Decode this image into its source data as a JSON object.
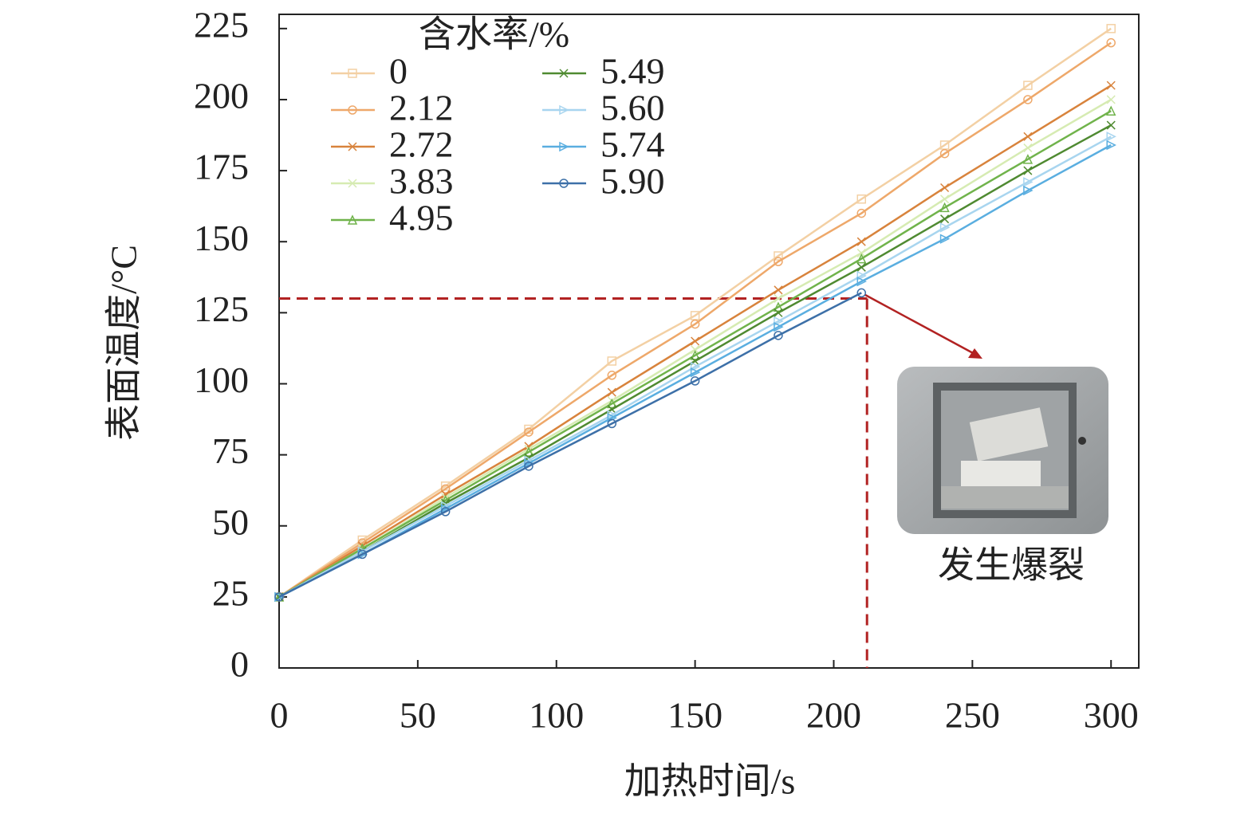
{
  "chart_data": {
    "type": "line",
    "xlabel": "加热时间/s",
    "ylabel": "表面温度/°C",
    "legend_title": "含水率/%",
    "annotation": "发生爆裂",
    "x": [
      0,
      30,
      60,
      90,
      120,
      150,
      180,
      210,
      240,
      270,
      300
    ],
    "xlim": [
      0,
      310
    ],
    "xticks": [
      0,
      50,
      100,
      150,
      200,
      250,
      300
    ],
    "ylim": [
      0,
      230
    ],
    "yticks": [
      0,
      25,
      50,
      75,
      100,
      125,
      150,
      175,
      200,
      225
    ],
    "burst_point": {
      "x": 212,
      "y": 130
    },
    "series": [
      {
        "name": "0",
        "color": "#f3d0a4",
        "marker": "square",
        "values": [
          25,
          45,
          64,
          84,
          108,
          124,
          145,
          165,
          184,
          205,
          225
        ]
      },
      {
        "name": "2.12",
        "color": "#eea86a",
        "marker": "circle",
        "values": [
          25,
          44,
          63,
          83,
          103,
          121,
          143,
          160,
          181,
          200,
          220
        ]
      },
      {
        "name": "2.72",
        "color": "#d8833c",
        "marker": "x",
        "values": [
          25,
          43,
          61,
          78,
          97,
          115,
          133,
          150,
          169,
          187,
          205
        ]
      },
      {
        "name": "3.83",
        "color": "#d6ebb2",
        "marker": "x",
        "values": [
          25,
          42,
          60,
          77,
          94,
          112,
          130,
          146,
          165,
          183,
          200
        ]
      },
      {
        "name": "4.95",
        "color": "#70b34b",
        "marker": "triangle",
        "values": [
          25,
          42,
          59,
          76,
          93,
          110,
          127,
          144,
          162,
          179,
          196
        ]
      },
      {
        "name": "5.49",
        "color": "#4f8a31",
        "marker": "x",
        "values": [
          25,
          41,
          58,
          74,
          91,
          108,
          125,
          141,
          158,
          175,
          191
        ]
      },
      {
        "name": "5.60",
        "color": "#a8d5ef",
        "marker": "triangle-right",
        "values": [
          25,
          41,
          57,
          73,
          89,
          106,
          122,
          138,
          155,
          171,
          187
        ]
      },
      {
        "name": "5.74",
        "color": "#5aaee0",
        "marker": "triangle-right",
        "values": [
          25,
          40,
          56,
          72,
          88,
          104,
          120,
          136,
          151,
          168,
          184
        ]
      },
      {
        "name": "5.90",
        "color": "#3d70a8",
        "marker": "circle",
        "values": [
          25,
          40,
          55,
          71,
          86,
          101,
          117,
          132,
          null,
          null,
          null
        ]
      }
    ]
  }
}
